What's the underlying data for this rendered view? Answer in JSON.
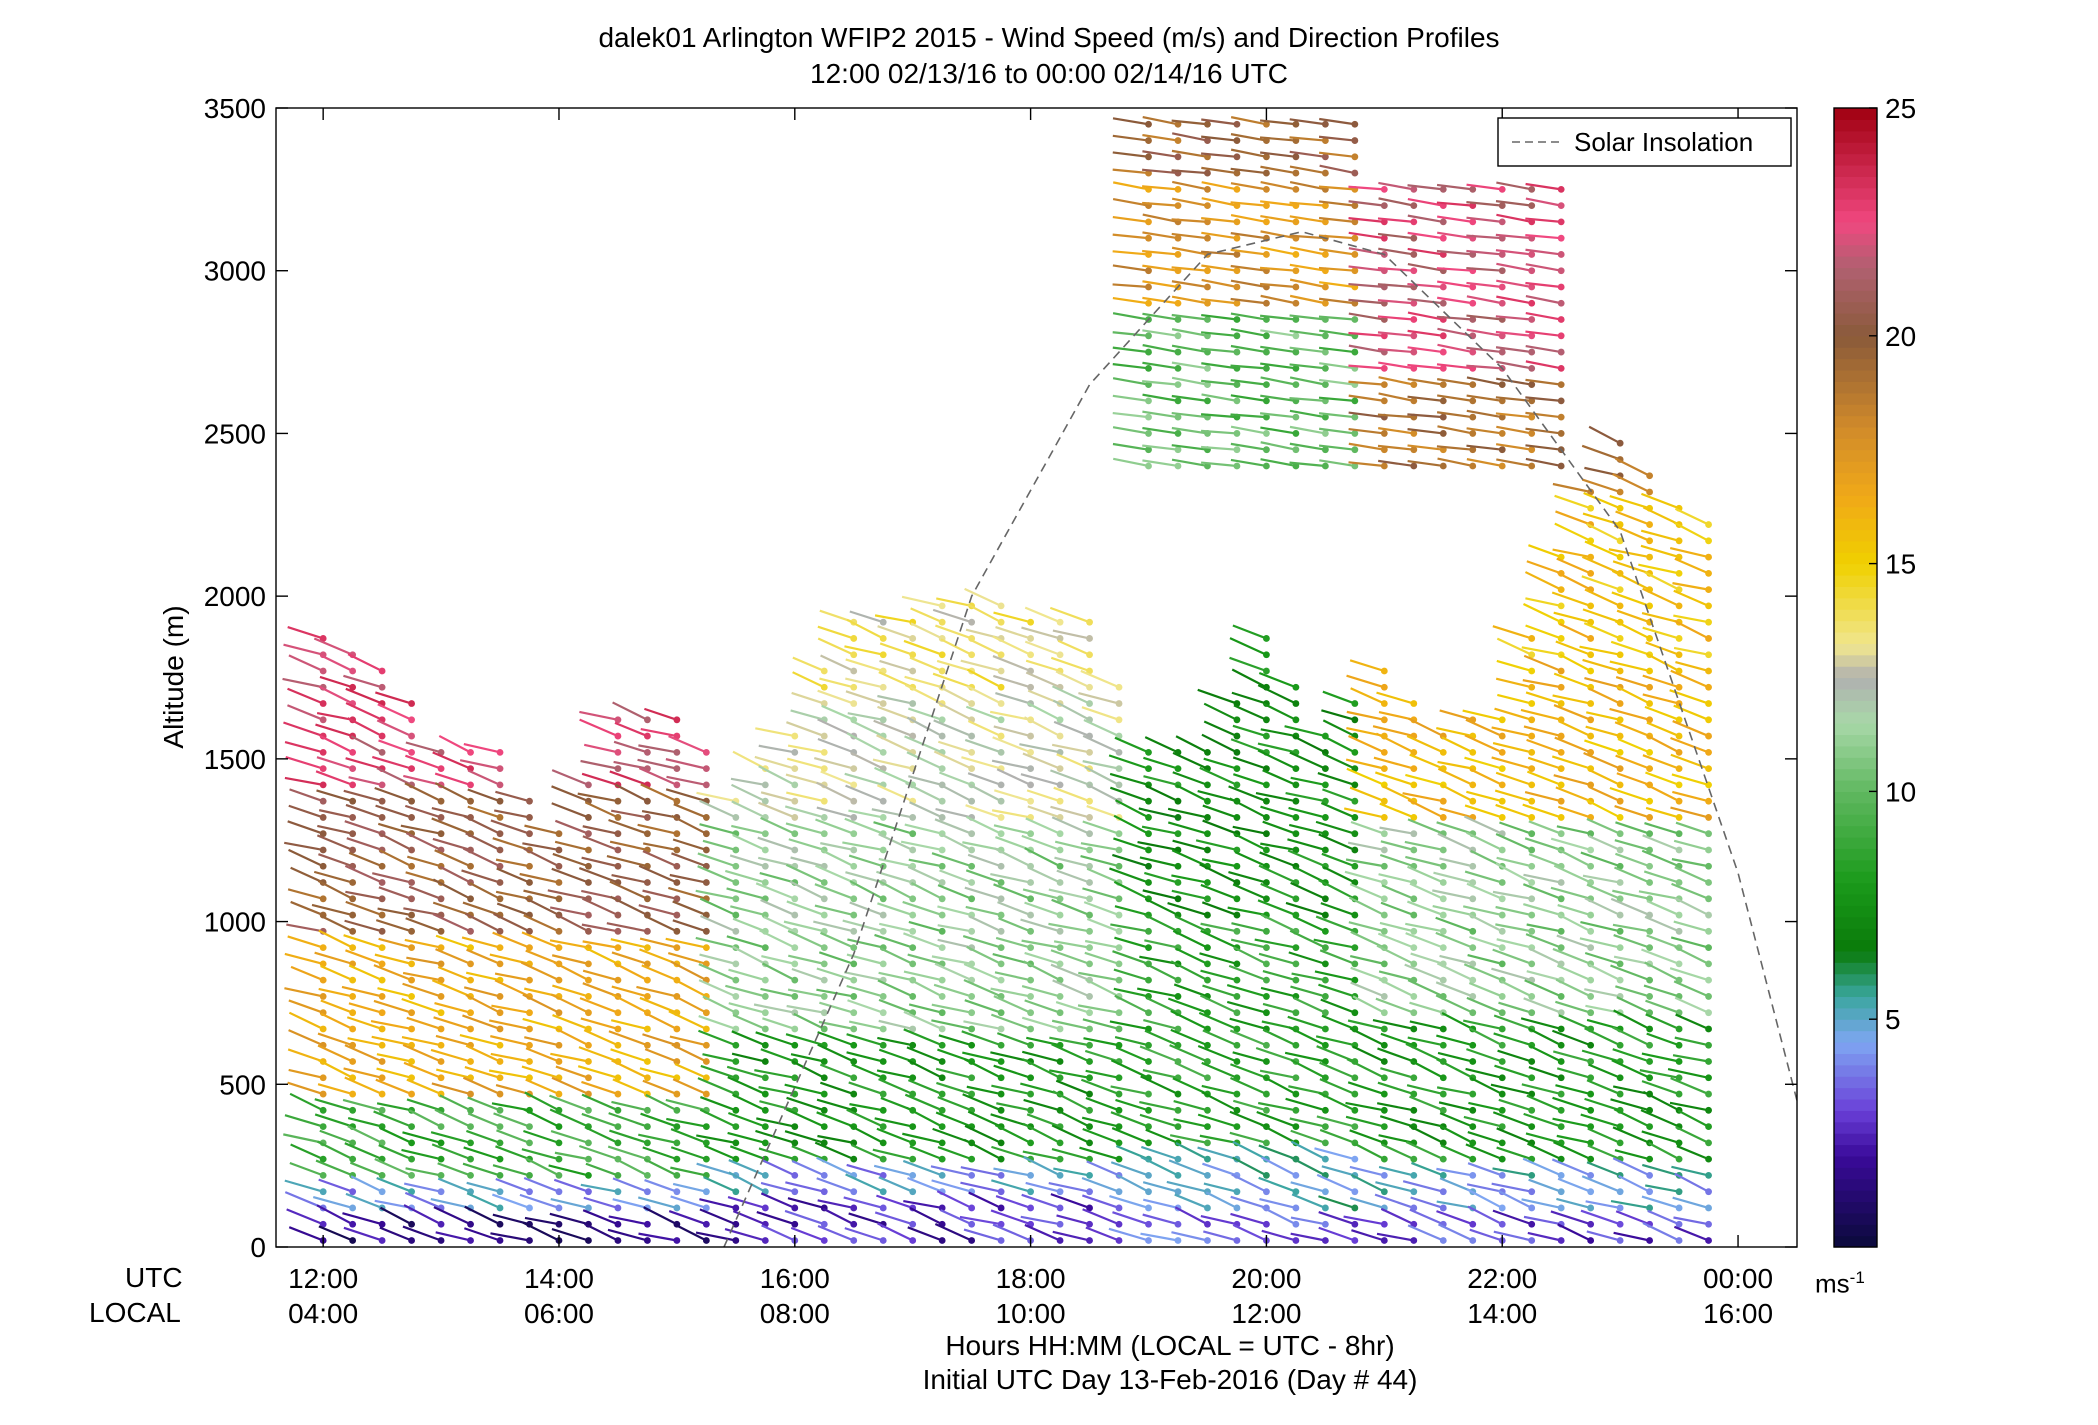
{
  "title_line1": "dalek01 Arlington WFIP2 2015 - Wind Speed (m/s) and Direction Profiles",
  "title_line2": "12:00 02/13/16 to 00:00 02/14/16  UTC",
  "xlabel_line1": "Hours HH:MM  (LOCAL = UTC - 8hr)",
  "xlabel_line2": "Initial UTC Day 13-Feb-2016 (Day # 44)",
  "row_labels": {
    "utc": "UTC",
    "local": "LOCAL"
  },
  "colorbar_unit": {
    "base": "ms",
    "exp": "-1"
  },
  "chart_data": {
    "type": "wind-barb profile",
    "ylabel": "Altitude (m)",
    "ylim": [
      0,
      3500
    ],
    "yticks": [
      "0",
      "500",
      "1000",
      "1500",
      "2000",
      "2500",
      "3000",
      "3500"
    ],
    "xlim_hours": [
      11.6,
      24.5
    ],
    "xticks_utc": [
      "12:00",
      "14:00",
      "16:00",
      "18:00",
      "20:00",
      "22:00",
      "00:00"
    ],
    "xticks_local": [
      "04:00",
      "06:00",
      "08:00",
      "10:00",
      "12:00",
      "14:00",
      "16:00"
    ],
    "legend": {
      "label": "Solar Insolation",
      "position": "top-right"
    },
    "solar_insolation_curve": {
      "points": [
        [
          15.4,
          0
        ],
        [
          16.5,
          900
        ],
        [
          17.5,
          2000
        ],
        [
          18.5,
          2650
        ],
        [
          19.5,
          3050
        ],
        [
          20.3,
          3120
        ],
        [
          21.0,
          3050
        ],
        [
          22.0,
          2700
        ],
        [
          23.0,
          2200
        ],
        [
          24.0,
          1150
        ],
        [
          24.5,
          450
        ]
      ]
    },
    "colorbar": {
      "min": 0,
      "max": 25,
      "ticks": [
        "5",
        "10",
        "15",
        "20",
        "25"
      ],
      "colors": [
        {
          "v": 0,
          "c": "#0a0a3a"
        },
        {
          "v": 2,
          "c": "#3a0a9a"
        },
        {
          "v": 3,
          "c": "#6a40d8"
        },
        {
          "v": 4.5,
          "c": "#7fa6f2"
        },
        {
          "v": 5.5,
          "c": "#3aa6a0"
        },
        {
          "v": 6.5,
          "c": "#0a7a0a"
        },
        {
          "v": 8,
          "c": "#1a9a1a"
        },
        {
          "v": 10,
          "c": "#60b860"
        },
        {
          "v": 11.5,
          "c": "#a8d8a8"
        },
        {
          "v": 12.5,
          "c": "#b0b0b0"
        },
        {
          "v": 13.2,
          "c": "#f0e690"
        },
        {
          "v": 15,
          "c": "#f0d000"
        },
        {
          "v": 16.5,
          "c": "#f0a818"
        },
        {
          "v": 18,
          "c": "#d08a2a"
        },
        {
          "v": 20,
          "c": "#8a5a3a"
        },
        {
          "v": 21.5,
          "c": "#b06070"
        },
        {
          "v": 22.5,
          "c": "#f04880"
        },
        {
          "v": 25,
          "c": "#a00010"
        }
      ]
    },
    "sampling": {
      "time_step_hours": 0.25,
      "range_gate_m": 50
    },
    "profile_tops_m": [
      [
        12.0,
        1870
      ],
      [
        12.5,
        1780
      ],
      [
        13.0,
        1560
      ],
      [
        13.5,
        1520
      ],
      [
        14.0,
        1300
      ],
      [
        14.5,
        1620
      ],
      [
        15.0,
        1660
      ],
      [
        15.5,
        1410
      ],
      [
        16.0,
        1600
      ],
      [
        16.5,
        1960
      ],
      [
        17.0,
        1960
      ],
      [
        17.5,
        1990
      ],
      [
        18.0,
        1960
      ],
      [
        18.5,
        1950
      ],
      [
        19.0,
        1560
      ],
      [
        19.5,
        1530
      ],
      [
        20.0,
        1900
      ],
      [
        20.5,
        1600
      ],
      [
        21.0,
        1780
      ],
      [
        21.5,
        1610
      ],
      [
        22.0,
        1650
      ],
      [
        22.5,
        2150
      ],
      [
        23.0,
        2500
      ],
      [
        23.5,
        2300
      ],
      [
        23.85,
        2190
      ]
    ],
    "speed_layers_m_s": [
      {
        "hours": [
          12.0,
          15.5
        ],
        "layers": [
          [
            0,
            80,
            1.5
          ],
          [
            80,
            200,
            4.5
          ],
          [
            200,
            450,
            9
          ],
          [
            450,
            950,
            16.5
          ],
          [
            950,
            1400,
            20
          ],
          [
            1400,
            1900,
            22.5
          ]
        ]
      },
      {
        "hours": [
          15.5,
          19.0
        ],
        "layers": [
          [
            0,
            150,
            2.5
          ],
          [
            150,
            250,
            4.5
          ],
          [
            250,
            650,
            8
          ],
          [
            650,
            1300,
            11
          ],
          [
            1300,
            1700,
            12.5
          ],
          [
            1700,
            2000,
            13.5
          ]
        ]
      },
      {
        "hours": [
          19.0,
          21.0
        ],
        "layers": [
          [
            0,
            100,
            3.5
          ],
          [
            100,
            300,
            5
          ],
          [
            300,
            1000,
            8.5
          ],
          [
            1000,
            1900,
            7.5
          ],
          [
            2400,
            2900,
            10
          ],
          [
            2900,
            3300,
            17.5
          ],
          [
            3300,
            3500,
            19.5
          ]
        ]
      },
      {
        "hours": [
          21.0,
          24.0
        ],
        "layers": [
          [
            0,
            100,
            3
          ],
          [
            100,
            250,
            4.8
          ],
          [
            250,
            700,
            8
          ],
          [
            700,
            1300,
            11
          ],
          [
            1300,
            1800,
            16
          ],
          [
            1800,
            2300,
            15.5
          ],
          [
            2300,
            2700,
            19
          ],
          [
            2700,
            3300,
            22
          ]
        ]
      }
    ],
    "upper_cluster": {
      "hours": [
        19.0,
        22.5
      ],
      "altitude_m": [
        2400,
        3500
      ]
    }
  }
}
